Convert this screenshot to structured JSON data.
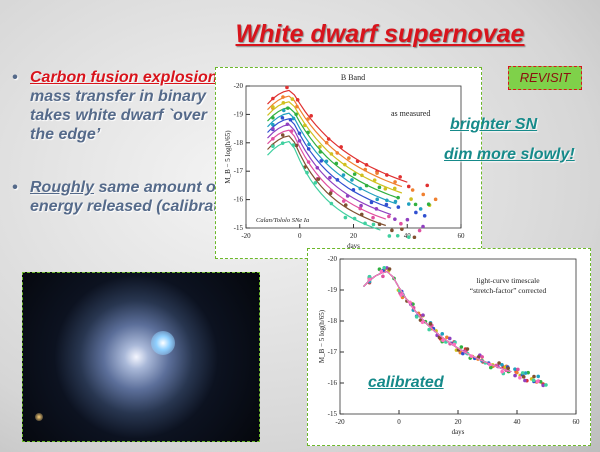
{
  "title": "White dwarf supernovae",
  "bullets": [
    {
      "highlight": "Carbon fusion explosion",
      "text": ": mass transfer in binary takes white dwarf `over the edge’"
    },
    {
      "highlight": "Roughly",
      "text": " same amount of energy released (calibrate)"
    }
  ],
  "badge": "REVISIT",
  "callouts": [
    "brighter SN",
    "dim more slowly!",
    "calibrated"
  ],
  "plot_top": {
    "title": "B Band",
    "note": "as measured",
    "source": "Calan/Tololo SNe Ia",
    "x_label": "days",
    "y_label": "M_B − 5 log(h/65)",
    "x_ticks": [
      "-20",
      "0",
      "20",
      "40",
      "60"
    ],
    "y_ticks": [
      "-20",
      "-19",
      "-18",
      "-17",
      "-16",
      "-15"
    ]
  },
  "plot_bottom": {
    "note_lines": [
      "light-curve timescale",
      "“stretch-factor” corrected"
    ],
    "x_label": "days",
    "y_label": "M_B − 5 log(h/65)",
    "x_ticks": [
      "-20",
      "0",
      "20",
      "40",
      "60"
    ],
    "y_ticks": [
      "-20",
      "-19",
      "-18",
      "-17",
      "-16",
      "-15"
    ]
  }
}
